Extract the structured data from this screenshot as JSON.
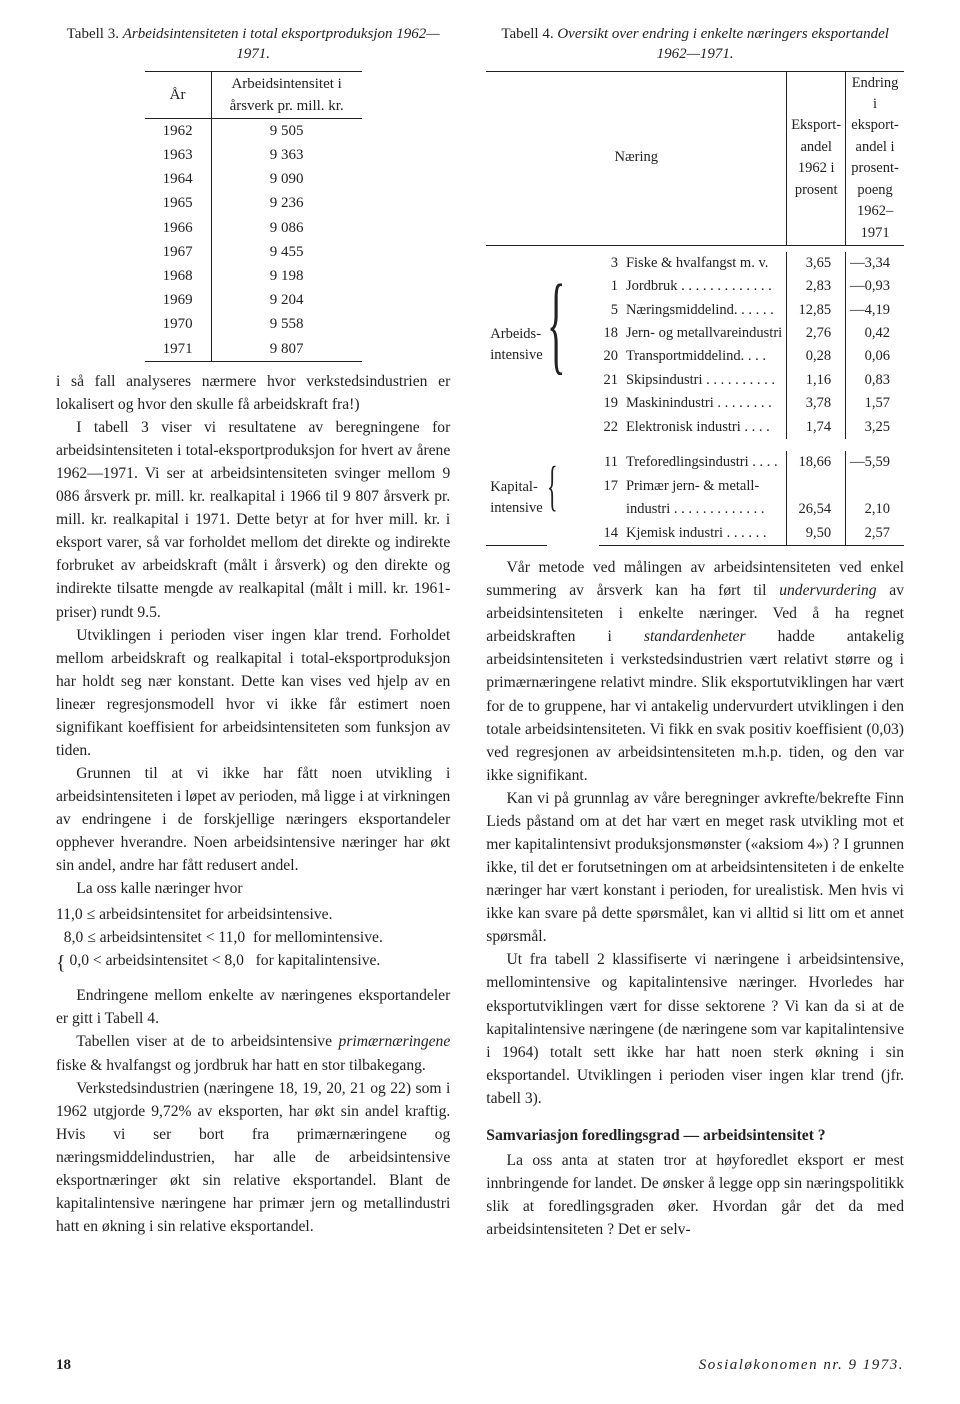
{
  "table3": {
    "caption_a": "Tabell 3.",
    "caption_b": "Arbeidsintensiteten i total eksportproduksjon 1962—",
    "caption_c": "1971.",
    "head_year": "År",
    "head_val1": "Arbeidsintensitet i",
    "head_val2": "årsverk pr. mill. kr.",
    "rows": [
      {
        "y": "1962",
        "v": "9 505"
      },
      {
        "y": "1963",
        "v": "9 363"
      },
      {
        "y": "1964",
        "v": "9 090"
      },
      {
        "y": "1965",
        "v": "9 236"
      },
      {
        "y": "1966",
        "v": "9 086"
      },
      {
        "y": "1967",
        "v": "9 455"
      },
      {
        "y": "1968",
        "v": "9 198"
      },
      {
        "y": "1969",
        "v": "9 204"
      },
      {
        "y": "1970",
        "v": "9 558"
      },
      {
        "y": "1971",
        "v": "9 807"
      }
    ]
  },
  "left": {
    "p0": "i så fall analyseres nærmere hvor verkstedsindustrien er lokalisert og hvor den skulle få arbeidskraft fra!)",
    "p1": "I tabell 3 viser vi resultatene av beregningene for arbeidsintensiteten i total-eksportproduksjon for hvert av årene 1962—1971. Vi ser at arbeidsintensiteten svinger mellom 9 086 årsverk pr. mill. kr. realkapital i 1966 til 9 807 årsverk pr. mill. kr. realkapital i 1971. Dette betyr at for hver mill. kr. i eksport varer, så var forholdet mellom det direkte og indirekte forbruket av arbeidskraft (målt i årsverk) og den direkte og indirekte tilsatte mengde av realkapital (målt i mill. kr. 1961-priser) rundt 9.5.",
    "p2": "Utviklingen i perioden viser ingen klar trend. Forholdet mellom arbeidskraft og realkapital i total-eksportproduksjon har holdt seg nær konstant. Dette kan vises ved hjelp av en lineær regresjonsmodell hvor vi ikke får estimert noen signifikant koeffisient for arbeidsintensiteten som funksjon av tiden.",
    "p3": "Grunnen til at vi ikke har fått noen utvikling i arbeidsintensiteten i løpet av perioden, må ligge i at virkningen av endringene i de forskjellige næringers eksportandeler opphever hverandre. Noen arbeidsintensive næringer har økt sin andel, andre har fått redusert andel.",
    "p4": "La oss kalle næringer hvor",
    "c1": "11,0 ≤ arbeidsintensitet for arbeidsintensive.",
    "c2a": "8,0 ≤ arbeidsintensitet < 11,0",
    "c2b": "for mellomintensive.",
    "c3a": "0,0 < arbeidsintensitet < 8,0",
    "c3b": "for kapitalintensive.",
    "p5": "Endringene mellom enkelte av næringenes eksportandeler er gitt i Tabell 4.",
    "p6a": "Tabellen viser at de to arbeidsintensive ",
    "p6i": "primærnæringene",
    "p6b": " fiske & hvalfangst og jordbruk har hatt en stor tilbakegang.",
    "p7": "Verkstedsindustrien (næringene 18, 19, 20, 21 og 22) som i 1962 utgjorde 9,72% av eksporten, har økt sin andel kraftig. Hvis vi ser bort fra primærnæringene og næringsmiddelindustrien, har alle de arbeidsintensive eksportnæringer økt sin relative eksportandel. Blant de kapitalintensive næringene har primær jern og metallindustri hatt en økning i sin relative eksportandel."
  },
  "table4": {
    "caption_a": "Tabell 4.",
    "caption_b": "Oversikt over endring i enkelte næringers eksportandel",
    "caption_c": "1962—1971.",
    "h_naering": "Næring",
    "h_col1a": "Eksport-",
    "h_col1b": "andel",
    "h_col1c": "1962 i",
    "h_col1d": "prosent",
    "h_col2a": "Endring i",
    "h_col2b": "eksport-",
    "h_col2c": "andel i",
    "h_col2d": "prosent-",
    "h_col2e": "poeng",
    "h_col2f": "1962–1971",
    "g1": "Arbeids-",
    "g1b": "intensive",
    "g2": "Kapital-",
    "g2b": "intensive",
    "ar": [
      {
        "i": "3",
        "n": "Fiske & hvalfangst m. v.",
        "a": "3,65",
        "b": "—3,34"
      },
      {
        "i": "1",
        "n": "Jordbruk  . . . . . . . . . . . . .",
        "a": "2,83",
        "b": "—0,93"
      },
      {
        "i": "5",
        "n": "Næringsmiddelind.  . . . . .",
        "a": "12,85",
        "b": "—4,19"
      },
      {
        "i": "18",
        "n": "Jern- og metallvareindustri",
        "a": "2,76",
        "b": "0,42"
      },
      {
        "i": "20",
        "n": "Transportmiddelind.  . . .",
        "a": "0,28",
        "b": "0,06"
      },
      {
        "i": "21",
        "n": "Skipsindustri  . . . . . . . . . .",
        "a": "1,16",
        "b": "0,83"
      },
      {
        "i": "19",
        "n": "Maskinindustri  . . . . . . . .",
        "a": "3,78",
        "b": "1,57"
      },
      {
        "i": "22",
        "n": "Elektronisk industri  . . . .",
        "a": "1,74",
        "b": "3,25"
      }
    ],
    "kr": [
      {
        "i": "11",
        "n": "Treforedlingsindustri . . . .",
        "a": "18,66",
        "b": "—5,59"
      },
      {
        "i": "17",
        "n": "Primær jern- & metall-",
        "a": "",
        "b": ""
      },
      {
        "i": "",
        "n": "   industri  . . . . . . . . . . . . .",
        "a": "26,54",
        "b": "2,10"
      },
      {
        "i": "14",
        "n": "Kjemisk industri  . . . . . .",
        "a": "9,50",
        "b": "2,57"
      }
    ]
  },
  "right": {
    "p1a": "Vår metode ved målingen av arbeidsintensiteten ved enkel summering av årsverk kan ha ført til ",
    "p1i": "undervurdering",
    "p1b": " av arbeidsintensiteten i enkelte næringer. Ved å ha regnet arbeidskraften i ",
    "p1i2": "standardenheter",
    "p1c": " hadde antakelig arbeidsintensiteten i verkstedsindustrien vært relativt større og i primærnæringene relativt mindre. Slik eksportutviklingen har vært for de to gruppene, har vi antakelig undervurdert utviklingen i den totale arbeidsintensiteten. Vi fikk en svak positiv koeffisient (0,03) ved regresjonen av arbeidsintensiteten m.h.p. tiden, og den var ikke signifikant.",
    "p2": "Kan vi på grunnlag av våre beregninger avkrefte/bekrefte Finn Lieds påstand om at det har vært en meget rask utvikling mot et mer kapitalintensivt produksjonsmønster («aksiom 4») ? I grunnen ikke, til det er forutsetningen om at arbeidsintensiteten i de enkelte næringer har vært konstant i perioden, for urealistisk. Men hvis vi ikke kan svare på dette spørsmålet, kan vi alltid si litt om et annet spørsmål.",
    "p3": "Ut fra tabell 2 klassifiserte vi næringene i arbeidsintensive, mellomintensive og kapitalintensive næringer. Hvorledes har eksportutviklingen vært for disse sektorene ? Vi kan da si at de kapitalintensive næringene (de næringene som var kapitalintensive i 1964) totalt sett ikke har hatt noen sterk økning i sin eksportandel. Utviklingen i perioden viser ingen klar trend (jfr. tabell 3).",
    "h1": "Samvariasjon foredlingsgrad — arbeidsintensitet ?",
    "p4": "La oss anta at staten tror at høyforedlet eksport er mest innbringende for landet. De ønsker å legge opp sin næringspolitikk slik at foredlingsgraden øker. Hvordan går det da med arbeidsintensiteten ? Det er selv-"
  },
  "footer": {
    "pageno": "18",
    "journal": "Sosialøkonomen nr. 9 1973."
  }
}
